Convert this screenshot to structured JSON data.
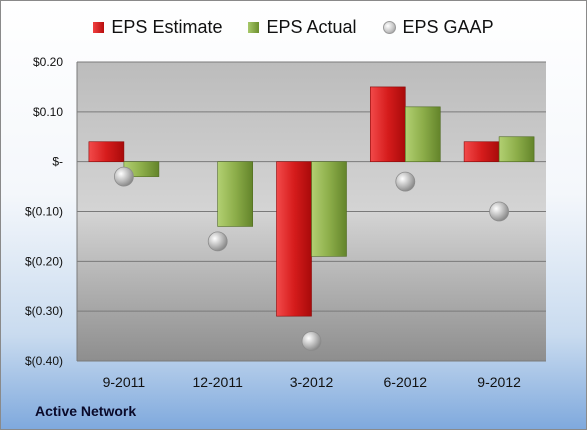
{
  "chart_data": {
    "type": "bar",
    "categories": [
      "9-2011",
      "12-2011",
      "3-2012",
      "6-2012",
      "9-2012"
    ],
    "series": [
      {
        "name": "EPS Estimate",
        "kind": "bar",
        "values": [
          0.04,
          0.0,
          -0.31,
          0.15,
          0.04
        ]
      },
      {
        "name": "EPS Actual",
        "kind": "bar",
        "values": [
          -0.03,
          -0.13,
          -0.19,
          0.11,
          0.05
        ]
      },
      {
        "name": "EPS GAAP",
        "kind": "marker",
        "values": [
          -0.03,
          -0.16,
          -0.36,
          -0.04,
          -0.1
        ]
      }
    ],
    "yticks": [
      0.2,
      0.1,
      0.0,
      -0.1,
      -0.2,
      -0.3,
      -0.4
    ],
    "ytick_labels": [
      "$0.20",
      "$0.10",
      "$-",
      "$(0.10)",
      "$(0.20)",
      "$(0.30)",
      "$(0.40)"
    ],
    "ylim": [
      -0.4,
      0.2
    ],
    "grid": true,
    "legend_position": "top",
    "colors": {
      "estimate": "#d42020",
      "actual": "#8db04a",
      "gaap": "#b5b5b5"
    }
  },
  "legend": {
    "estimate": "EPS Estimate",
    "actual": "EPS Actual",
    "gaap": "EPS GAAP"
  },
  "footer": {
    "company": "Active Network"
  }
}
